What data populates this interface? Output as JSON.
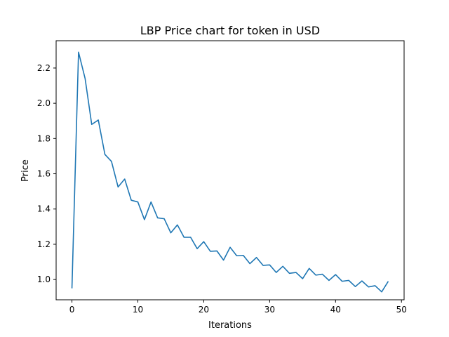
{
  "chart_data": {
    "type": "line",
    "title": "LBP Price chart for token in USD",
    "xlabel": "Iterations",
    "ylabel": "Price",
    "xlim": [
      -2.4,
      50.4
    ],
    "ylim": [
      0.885,
      2.355
    ],
    "grid": false,
    "x_ticks": [
      0,
      10,
      20,
      30,
      40,
      50
    ],
    "x_tick_labels": [
      "0",
      "10",
      "20",
      "30",
      "40",
      "50"
    ],
    "y_ticks": [
      1.0,
      1.2,
      1.4,
      1.6,
      1.8,
      2.0,
      2.2
    ],
    "y_tick_labels": [
      "1.0",
      "1.2",
      "1.4",
      "1.6",
      "1.8",
      "2.0",
      "2.2"
    ],
    "series": [
      {
        "color": "#1f77b4",
        "x": [
          0,
          1,
          2,
          3,
          4,
          5,
          6,
          7,
          8,
          9,
          10,
          11,
          12,
          13,
          14,
          15,
          16,
          17,
          18,
          19,
          20,
          21,
          22,
          23,
          24,
          25,
          26,
          27,
          28,
          29,
          30,
          31,
          32,
          33,
          34,
          35,
          36,
          37,
          38,
          39,
          40,
          41,
          42,
          43,
          44,
          45,
          46,
          47,
          48
        ],
        "values": [
          0.95,
          2.29,
          2.14,
          1.88,
          1.905,
          1.71,
          1.67,
          1.525,
          1.57,
          1.45,
          1.44,
          1.34,
          1.44,
          1.35,
          1.345,
          1.265,
          1.31,
          1.24,
          1.24,
          1.175,
          1.215,
          1.16,
          1.162,
          1.11,
          1.183,
          1.135,
          1.137,
          1.09,
          1.125,
          1.08,
          1.083,
          1.04,
          1.075,
          1.035,
          1.04,
          1.005,
          1.063,
          1.025,
          1.03,
          0.995,
          1.028,
          0.99,
          0.995,
          0.96,
          0.992,
          0.958,
          0.965,
          0.93,
          0.99
        ]
      }
    ]
  }
}
